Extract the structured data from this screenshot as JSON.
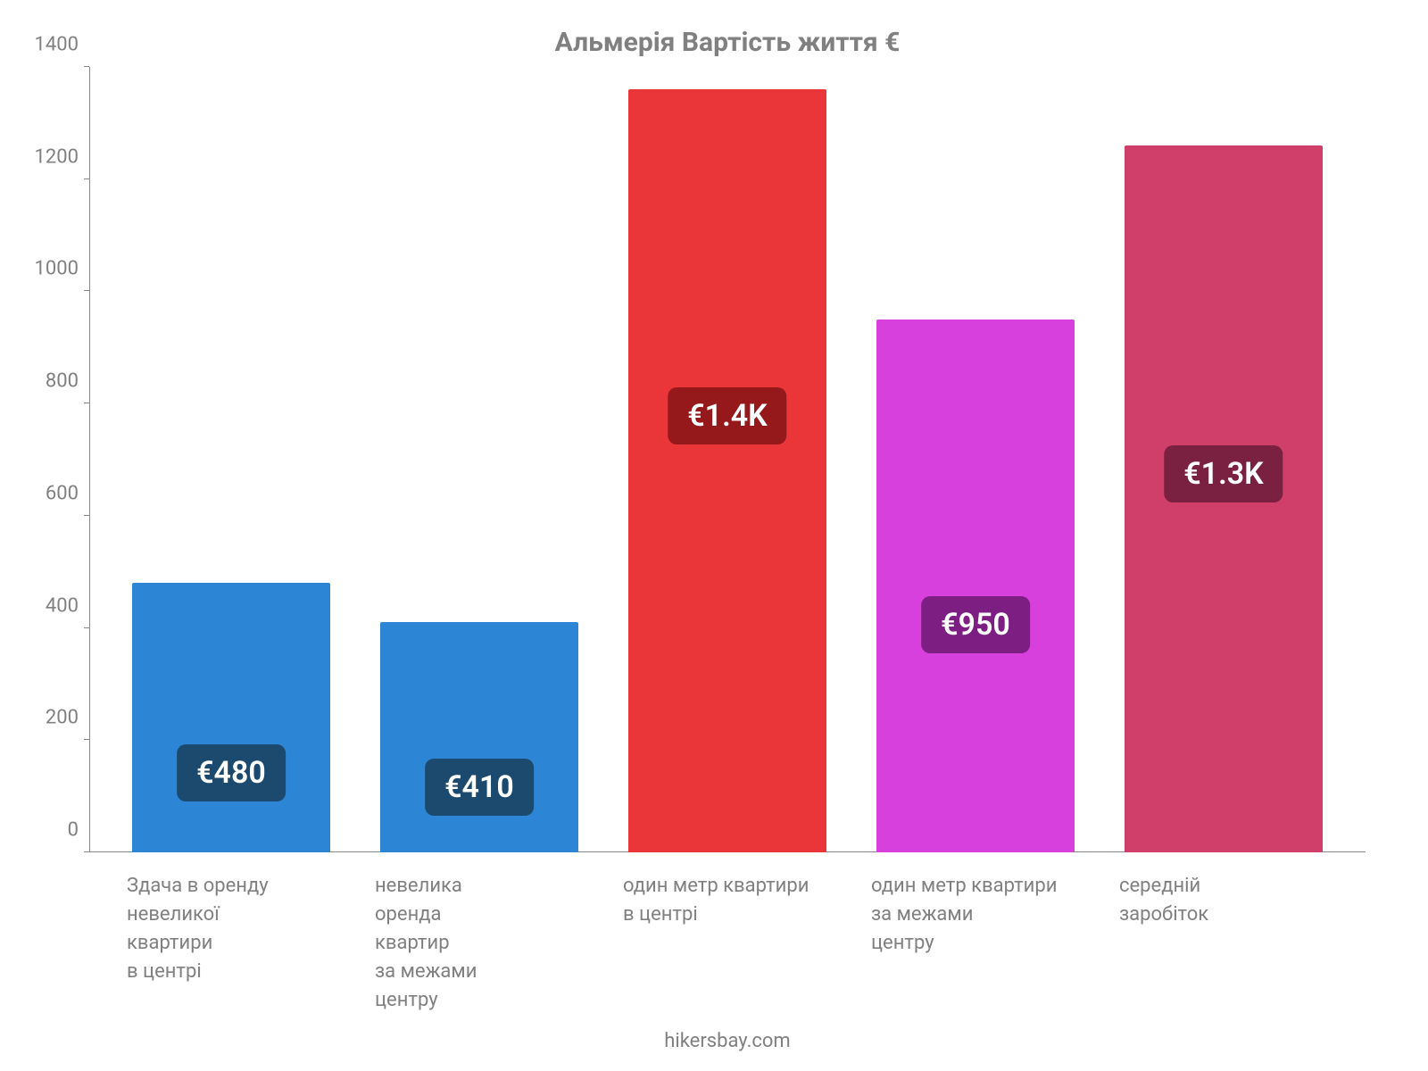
{
  "chart": {
    "type": "bar",
    "title": "Альмерія Вартість життя €",
    "title_fontsize": 30,
    "title_color": "#808080",
    "background_color": "#ffffff",
    "axis_color": "#888888",
    "tick_label_color": "#808080",
    "tick_label_fontsize": 22,
    "ylim": [
      0,
      1400
    ],
    "ytick_step": 200,
    "yticks": [
      0,
      200,
      400,
      600,
      800,
      1000,
      1200,
      1400
    ],
    "categories": [
      "Здача в оренду\nневеликої\nквартири\nв центрі",
      "невелика\nоренда\nквартир\nза межами\nцентру",
      "один метр квартири\nв центрі",
      "один метр квартири\nза межами\nцентру",
      "середній\nзаробіток"
    ],
    "values": [
      480,
      410,
      1360,
      950,
      1260
    ],
    "display_values": [
      "€480",
      "€410",
      "€1.4K",
      "€950",
      "€1.3K"
    ],
    "bar_colors": [
      "#2d86d5",
      "#2d86d5",
      "#eb3639",
      "#d740dc",
      "#d03f69"
    ],
    "label_bg_colors": [
      "#1c4a6e",
      "#1c4a6e",
      "#95191b",
      "#7d1e82",
      "#7a2040"
    ],
    "value_label_fontsize": 34,
    "value_label_color": "#ffffff",
    "bar_width_pct": 80,
    "source": "hikersbay.com",
    "source_fontsize": 22
  }
}
